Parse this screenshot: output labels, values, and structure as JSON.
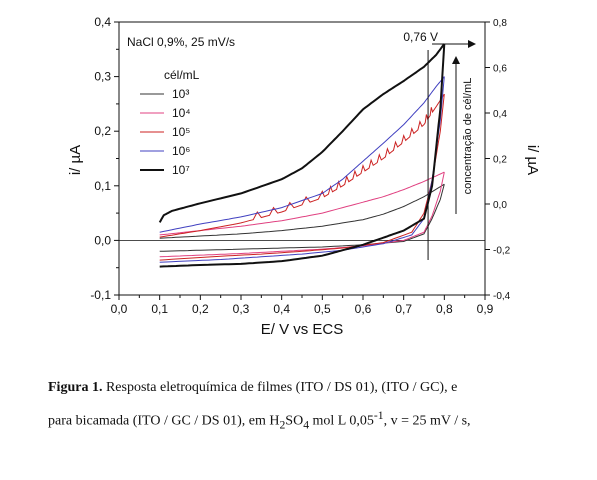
{
  "chart_data": {
    "type": "line",
    "annotation": "NaCl 0,9%, 25 mV/s",
    "xlabel": "E/ V vs ECS",
    "ylabel_left": "i/ µA",
    "ylabel_right": "i/ µA",
    "xlim": [
      0.0,
      0.9
    ],
    "ylim_left": [
      -0.1,
      0.4
    ],
    "ylim_right": [
      -0.4,
      0.8
    ],
    "x_ticks": [
      "0,0",
      "0,1",
      "0,2",
      "0,3",
      "0,4",
      "0,5",
      "0,6",
      "0,7",
      "0,8",
      "0,9"
    ],
    "y_left_ticks": [
      "-0,1",
      "0,0",
      "0,1",
      "0,2",
      "0,3",
      "0,4"
    ],
    "y_right_ticks": [
      "-0,4",
      "-0,2",
      "0,0",
      "0,2",
      "0,4",
      "0,6",
      "0,8"
    ],
    "legend_title": "cél/mL",
    "legend_placement": "top-left",
    "vline_label": "0,76 V",
    "vline_x": 0.76,
    "arrow_label": "concentração de cél/mL",
    "series": [
      {
        "name": "10³",
        "color": "#333333",
        "width": 1.0,
        "forward": [
          [
            0.1,
            0.004
          ],
          [
            0.2,
            0.008
          ],
          [
            0.3,
            0.012
          ],
          [
            0.4,
            0.018
          ],
          [
            0.5,
            0.026
          ],
          [
            0.6,
            0.038
          ],
          [
            0.65,
            0.048
          ],
          [
            0.7,
            0.062
          ],
          [
            0.75,
            0.08
          ],
          [
            0.8,
            0.103
          ]
        ],
        "reverse": [
          [
            0.8,
            0.103
          ],
          [
            0.79,
            0.075
          ],
          [
            0.77,
            0.04
          ],
          [
            0.75,
            0.012
          ],
          [
            0.7,
            -0.002
          ],
          [
            0.6,
            -0.008
          ],
          [
            0.5,
            -0.012
          ],
          [
            0.4,
            -0.014
          ],
          [
            0.3,
            -0.016
          ],
          [
            0.2,
            -0.018
          ],
          [
            0.1,
            -0.02
          ]
        ]
      },
      {
        "name": "10⁴",
        "color": "#e04080",
        "width": 1.0,
        "forward": [
          [
            0.1,
            0.01
          ],
          [
            0.2,
            0.018
          ],
          [
            0.3,
            0.026
          ],
          [
            0.4,
            0.036
          ],
          [
            0.5,
            0.05
          ],
          [
            0.6,
            0.07
          ],
          [
            0.65,
            0.08
          ],
          [
            0.7,
            0.093
          ],
          [
            0.75,
            0.108
          ],
          [
            0.8,
            0.125
          ]
        ],
        "reverse": [
          [
            0.8,
            0.125
          ],
          [
            0.79,
            0.09
          ],
          [
            0.77,
            0.045
          ],
          [
            0.75,
            0.015
          ],
          [
            0.7,
            0.0
          ],
          [
            0.6,
            -0.01
          ],
          [
            0.5,
            -0.016
          ],
          [
            0.4,
            -0.02
          ],
          [
            0.3,
            -0.024
          ],
          [
            0.2,
            -0.027
          ],
          [
            0.1,
            -0.03
          ]
        ]
      },
      {
        "name": "10⁵",
        "color": "#cc2222",
        "width": 1.0,
        "spikes": true,
        "forward": [
          [
            0.1,
            0.006
          ],
          [
            0.2,
            0.018
          ],
          [
            0.3,
            0.032
          ],
          [
            0.4,
            0.052
          ],
          [
            0.5,
            0.078
          ],
          [
            0.55,
            0.1
          ],
          [
            0.6,
            0.125
          ],
          [
            0.65,
            0.15
          ],
          [
            0.7,
            0.18
          ],
          [
            0.75,
            0.212
          ],
          [
            0.78,
            0.245
          ],
          [
            0.8,
            0.268
          ]
        ],
        "reverse": [
          [
            0.8,
            0.268
          ],
          [
            0.79,
            0.2
          ],
          [
            0.77,
            0.11
          ],
          [
            0.75,
            0.05
          ],
          [
            0.72,
            0.015
          ],
          [
            0.65,
            -0.004
          ],
          [
            0.55,
            -0.014
          ],
          [
            0.45,
            -0.02
          ],
          [
            0.35,
            -0.025
          ],
          [
            0.25,
            -0.029
          ],
          [
            0.1,
            -0.036
          ]
        ]
      },
      {
        "name": "10⁶",
        "color": "#4040c0",
        "width": 1.0,
        "forward": [
          [
            0.1,
            0.015
          ],
          [
            0.2,
            0.03
          ],
          [
            0.3,
            0.043
          ],
          [
            0.4,
            0.06
          ],
          [
            0.5,
            0.086
          ],
          [
            0.55,
            0.112
          ],
          [
            0.6,
            0.145
          ],
          [
            0.65,
            0.178
          ],
          [
            0.7,
            0.212
          ],
          [
            0.75,
            0.252
          ],
          [
            0.78,
            0.282
          ],
          [
            0.8,
            0.3
          ]
        ],
        "reverse": [
          [
            0.8,
            0.3
          ],
          [
            0.79,
            0.22
          ],
          [
            0.77,
            0.11
          ],
          [
            0.75,
            0.04
          ],
          [
            0.72,
            0.01
          ],
          [
            0.65,
            -0.006
          ],
          [
            0.55,
            -0.018
          ],
          [
            0.45,
            -0.025
          ],
          [
            0.35,
            -0.03
          ],
          [
            0.25,
            -0.035
          ],
          [
            0.1,
            -0.04
          ]
        ]
      },
      {
        "name": "10⁷",
        "color": "#111111",
        "width": 2.0,
        "forward": [
          [
            0.1,
            0.033
          ],
          [
            0.11,
            0.046
          ],
          [
            0.13,
            0.054
          ],
          [
            0.2,
            0.068
          ],
          [
            0.3,
            0.086
          ],
          [
            0.4,
            0.112
          ],
          [
            0.45,
            0.132
          ],
          [
            0.5,
            0.162
          ],
          [
            0.55,
            0.2
          ],
          [
            0.6,
            0.24
          ],
          [
            0.65,
            0.268
          ],
          [
            0.7,
            0.292
          ],
          [
            0.75,
            0.318
          ],
          [
            0.78,
            0.34
          ],
          [
            0.8,
            0.36
          ]
        ],
        "reverse": [
          [
            0.8,
            0.36
          ],
          [
            0.79,
            0.24
          ],
          [
            0.77,
            0.1
          ],
          [
            0.75,
            0.04
          ],
          [
            0.7,
            0.018
          ],
          [
            0.65,
            0.005
          ],
          [
            0.6,
            -0.008
          ],
          [
            0.55,
            -0.018
          ],
          [
            0.5,
            -0.028
          ],
          [
            0.4,
            -0.038
          ],
          [
            0.3,
            -0.043
          ],
          [
            0.2,
            -0.045
          ],
          [
            0.1,
            -0.048
          ]
        ]
      }
    ]
  },
  "caption": {
    "label": "Figura 1.",
    "text_line1": "Resposta eletroquímica de filmes (ITO / DS 01), (ITO / GC), e",
    "text_line2_pre": "para bicamada (ITO / GC / DS 01), em H",
    "sub_2": "2",
    "text_mid": "SO",
    "sub_4": "4",
    "text_after": " mol L 0,05",
    "sup": "-1",
    "text_end": ", v = 25 mV / s,"
  }
}
